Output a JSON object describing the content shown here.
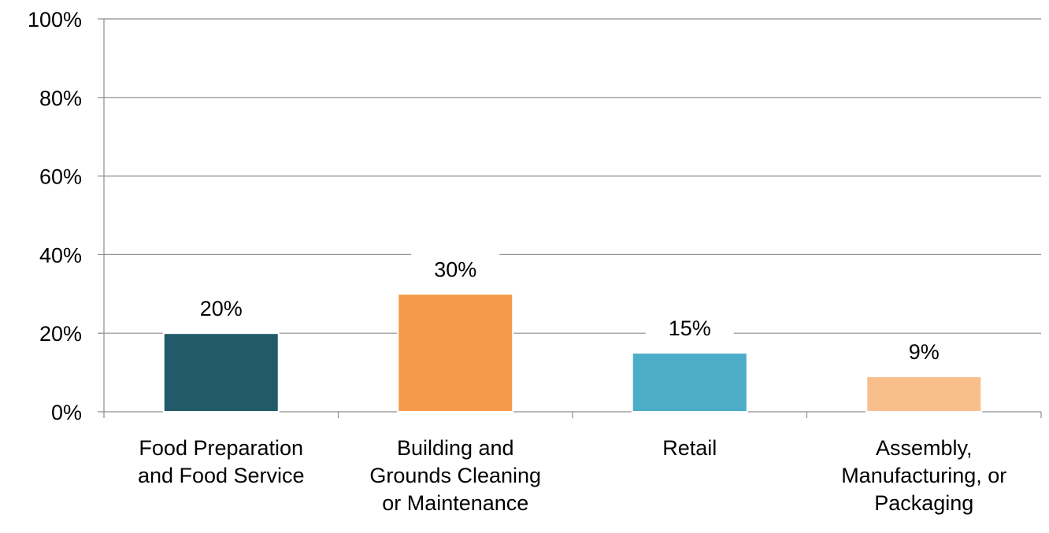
{
  "chart_data": {
    "type": "bar",
    "title": "",
    "xlabel": "",
    "ylabel": "",
    "categories": [
      [
        "Food Preparation",
        "and Food Service"
      ],
      [
        "Building and",
        "Grounds Cleaning",
        "or Maintenance"
      ],
      [
        "Retail"
      ],
      [
        "Assembly,",
        "Manufacturing, or",
        "Packaging"
      ]
    ],
    "values": [
      20,
      30,
      15,
      9
    ],
    "data_labels": [
      "20%",
      "30%",
      "15%",
      "9%"
    ],
    "colors": [
      "#225a69",
      "#f59a4a",
      "#4badc7",
      "#f8bf8d"
    ],
    "ylim": [
      0,
      100
    ],
    "yticks": [
      0,
      20,
      40,
      60,
      80,
      100
    ],
    "ytick_labels": [
      "0%",
      "20%",
      "40%",
      "60%",
      "80%",
      "100%"
    ],
    "grid": true,
    "legend": "none"
  }
}
